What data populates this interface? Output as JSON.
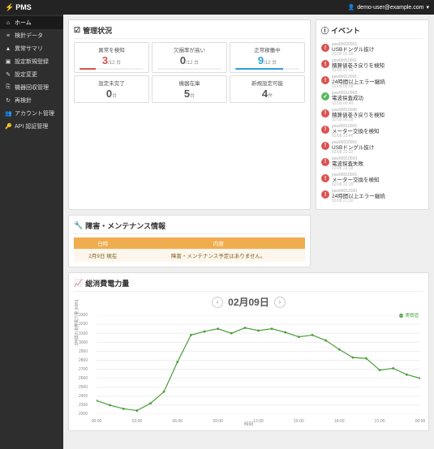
{
  "brand": "PMS",
  "user_email": "demo-user@example.com",
  "sidebar": {
    "items": [
      {
        "icon": "⌂",
        "label": "ホーム",
        "active": true
      },
      {
        "icon": "≡",
        "label": "検針データ"
      },
      {
        "icon": "▲",
        "label": "異常サマリ"
      },
      {
        "icon": "▣",
        "label": "設定新規登録"
      },
      {
        "icon": "✎",
        "label": "設定変更"
      },
      {
        "icon": "⎘",
        "label": "機器回収管理"
      },
      {
        "icon": "↻",
        "label": "再検針"
      },
      {
        "icon": "👥",
        "label": "アカウント管理"
      },
      {
        "icon": "🔑",
        "label": "API 認証管理"
      }
    ]
  },
  "status": {
    "title": "管理状況",
    "cards": [
      {
        "label": "異常を検知",
        "num": "3",
        "denom": "/12 台",
        "bar_color": "#d9534f",
        "bar_pct": 25
      },
      {
        "label": "欠損率が高い",
        "num": "0",
        "denom": "/12 台",
        "bar_color": "#999",
        "bar_pct": 0
      },
      {
        "label": "正常稼働中",
        "num": "9",
        "denom": "/12 台",
        "bar_color": "#2e9fd8",
        "bar_pct": 75
      },
      {
        "label": "設定未完了",
        "num": "0",
        "denom": "台",
        "bar_color": "#999",
        "bar_pct": 0
      },
      {
        "label": "機器在庫",
        "num": "5",
        "denom": "台",
        "bar_color": "#999",
        "bar_pct": 0
      },
      {
        "label": "新規設定可能",
        "num": "4",
        "denom": "件",
        "bar_color": "#999",
        "bar_pct": 0
      }
    ]
  },
  "maintenance": {
    "title": "障害・メンテナンス情報",
    "cols": [
      "日時",
      "内容"
    ],
    "rows": [
      [
        "2月9日 現在",
        "障害・メンテナンス予定はありません。"
      ]
    ]
  },
  "events": {
    "title": "イベント",
    "badge_colors": {
      "error": "#d9534f",
      "ok": "#5cb85c"
    },
    "list": [
      {
        "type": "error",
        "id": "psw00020001",
        "msg": "USBドングル抜け",
        "ts": "02/09 01:39"
      },
      {
        "type": "error",
        "id": "psw00010001",
        "msg": "積算値巻き戻りを検知",
        "ts": "02/09 01:09"
      },
      {
        "type": "error",
        "id": "psw00012001",
        "msg": "24時間以上エラー継続",
        "ts": "02/09 00:58"
      },
      {
        "type": "ok",
        "id": "psw00010003",
        "msg": "電波探査成功",
        "ts": "02/09 00:49"
      },
      {
        "type": "error",
        "id": "psw00010000",
        "msg": "積算値巻き戻りを検知",
        "ts": "02/09 00:28"
      },
      {
        "type": "error",
        "id": "psw00010001",
        "msg": "メーター交換を検知",
        "ts": "02/08 23:46"
      },
      {
        "type": "error",
        "id": "psw00020001",
        "msg": "USBドングル抜け",
        "ts": "02/08 23:22"
      },
      {
        "type": "error",
        "id": "psw00010003",
        "msg": "電波探査失敗",
        "ts": "02/08 23:18"
      },
      {
        "type": "error",
        "id": "psw00010001",
        "msg": "メーター交換を検知",
        "ts": "02/08 22:29"
      },
      {
        "type": "error",
        "id": "psw00012000",
        "msg": "24時間以上エラー継続",
        "ts": "02/08 21:20"
      }
    ]
  },
  "chart": {
    "title": "総消費電力量",
    "date": "02月09日",
    "series_label": "実績値",
    "series_color": "#4a9e3a",
    "ylabel": "1時間の消費電力量 [kWh]",
    "xlabel": "時刻",
    "ylim": [
      2200,
      3300
    ],
    "ytick_step": 100,
    "xticks": [
      "00:00",
      "03:00",
      "06:00",
      "09:00",
      "12:00",
      "15:00",
      "18:00",
      "21:00",
      "00:00"
    ],
    "points": [
      {
        "x": 0,
        "y": 2350
      },
      {
        "x": 1,
        "y": 2300
      },
      {
        "x": 2,
        "y": 2260
      },
      {
        "x": 3,
        "y": 2240
      },
      {
        "x": 4,
        "y": 2320
      },
      {
        "x": 5,
        "y": 2450
      },
      {
        "x": 6,
        "y": 2780
      },
      {
        "x": 7,
        "y": 3080
      },
      {
        "x": 8,
        "y": 3120
      },
      {
        "x": 9,
        "y": 3150
      },
      {
        "x": 10,
        "y": 3100
      },
      {
        "x": 11,
        "y": 3160
      },
      {
        "x": 12,
        "y": 3130
      },
      {
        "x": 13,
        "y": 3150
      },
      {
        "x": 14,
        "y": 3110
      },
      {
        "x": 15,
        "y": 3060
      },
      {
        "x": 16,
        "y": 3080
      },
      {
        "x": 17,
        "y": 3020
      },
      {
        "x": 18,
        "y": 2920
      },
      {
        "x": 19,
        "y": 2830
      },
      {
        "x": 20,
        "y": 2820
      },
      {
        "x": 21,
        "y": 2690
      },
      {
        "x": 22,
        "y": 2710
      },
      {
        "x": 23,
        "y": 2640
      },
      {
        "x": 24,
        "y": 2600
      }
    ]
  }
}
